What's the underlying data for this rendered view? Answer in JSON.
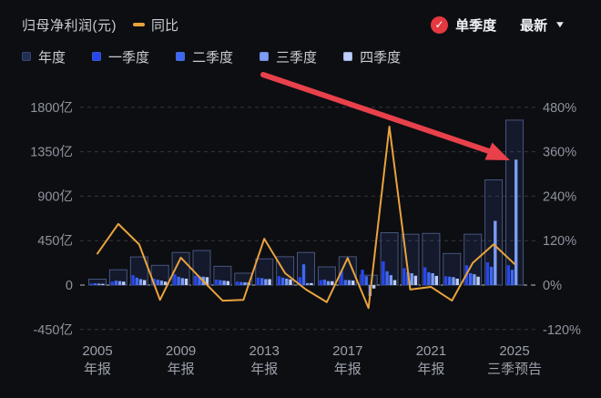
{
  "header": {
    "title": "归母净利润(元)",
    "line_legend": "同比",
    "mode_label": "单季度",
    "latest_label": "最新"
  },
  "controls": {
    "checked_icon": "✓",
    "caret_icon": "▼"
  },
  "legend": {
    "items": [
      {
        "label": "年度",
        "color": "#232f52"
      },
      {
        "label": "一季度",
        "color": "#2847ea"
      },
      {
        "label": "二季度",
        "color": "#3f68f2"
      },
      {
        "label": "三季度",
        "color": "#7c9cf5"
      },
      {
        "label": "四季度",
        "color": "#bed0fa"
      }
    ]
  },
  "chart_data": {
    "type": "bar",
    "title": "归母净利润(元) 单季度",
    "unit": "亿元",
    "grid": true,
    "years": [
      2005,
      2006,
      2007,
      2008,
      2009,
      2010,
      2011,
      2012,
      2013,
      2014,
      2015,
      2016,
      2017,
      2018,
      2019,
      2020,
      2021,
      2022,
      2023,
      2024,
      2025
    ],
    "annual_series": {
      "name": "年度",
      "values": [
        60,
        155,
        285,
        200,
        330,
        350,
        190,
        120,
        265,
        287,
        330,
        184,
        287,
        100,
        530,
        515,
        523,
        320,
        515,
        1065,
        1670
      ]
    },
    "series": [
      {
        "name": "一季度",
        "values": [
          15,
          35,
          100,
          65,
          110,
          95,
          55,
          35,
          75,
          90,
          80,
          50,
          140,
          155,
          240,
          170,
          180,
          90,
          200,
          230,
          200
        ]
      },
      {
        "name": "二季度",
        "values": [
          18,
          45,
          75,
          55,
          85,
          90,
          50,
          30,
          70,
          75,
          210,
          55,
          52,
          90,
          140,
          130,
          130,
          85,
          120,
          185,
          155
        ]
      },
      {
        "name": "三季度",
        "values": [
          15,
          40,
          60,
          45,
          70,
          85,
          45,
          28,
          60,
          65,
          20,
          40,
          50,
          -110,
          100,
          120,
          120,
          80,
          110,
          650,
          1270
        ]
      },
      {
        "name": "四季度",
        "values": [
          12,
          35,
          50,
          35,
          65,
          80,
          40,
          27,
          60,
          57,
          20,
          39,
          45,
          -35,
          50,
          95,
          93,
          65,
          85,
          null,
          null
        ]
      }
    ],
    "line_series": {
      "name": "同比",
      "unit": "%",
      "color": "#e9a33c",
      "values": [
        85,
        165,
        110,
        -40,
        74,
        15,
        -42,
        -40,
        125,
        32,
        -12,
        -46,
        73,
        -62,
        428,
        -12,
        -5,
        -42,
        60,
        110,
        57
      ]
    },
    "left_axis": {
      "tick_labels": [
        "1800亿",
        "1350亿",
        "900亿",
        "450亿",
        "0",
        "-450亿"
      ],
      "tick_values": [
        1800,
        1350,
        900,
        450,
        0,
        -450
      ]
    },
    "right_axis": {
      "tick_labels": [
        "480%",
        "360%",
        "240%",
        "120%",
        "0%",
        "-120%"
      ],
      "tick_values": [
        480,
        360,
        240,
        120,
        0,
        -120
      ]
    },
    "x_axis_labels": [
      {
        "year": 2005,
        "line1": "2005",
        "line2": "年报"
      },
      {
        "year": 2009,
        "line1": "2009",
        "line2": "年报"
      },
      {
        "year": 2013,
        "line1": "2013",
        "line2": "年报"
      },
      {
        "year": 2017,
        "line1": "2017",
        "line2": "年报"
      },
      {
        "year": 2021,
        "line1": "2021",
        "line2": "年报"
      },
      {
        "year": 2025,
        "line1": "2025",
        "line2": "三季预告"
      }
    ],
    "colors": {
      "annual_fill": "rgba(64,96,176,0.16)",
      "annual_stroke": "#46557f",
      "quarters": [
        "#2847ea",
        "#3f68f2",
        "#7c9cf5",
        "#bed0fa"
      ]
    }
  },
  "annotation_arrow": {
    "color": "#e8414b",
    "points_to": "2025 三季度 bar"
  }
}
